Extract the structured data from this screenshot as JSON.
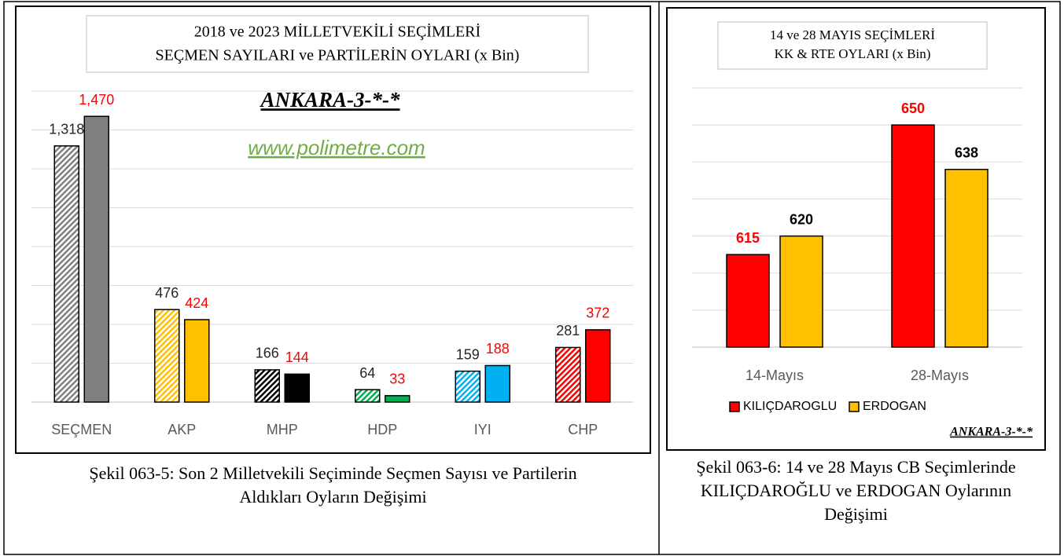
{
  "chart_data": [
    {
      "type": "bar",
      "title": [
        "2018 ve 2023 MİLLETVEKİLİ  SEÇİMLERİ",
        "SEÇMEN SAYILARI  ve PARTİLERİN  OYLARI  (x Bin)"
      ],
      "annotations": [
        "ANKARA-3-*-*",
        "www.polimetre.com"
      ],
      "caption": "Şekil 063-5: Son 2 Milletvekili Seçiminde Seçmen Sayısı ve Partilerin Aldıkları Oyların Değişimi",
      "categories": [
        "SEÇMEN",
        "AKP",
        "MHP",
        "HDP",
        "IYI",
        "CHP"
      ],
      "series": [
        {
          "values": [
            1318,
            476,
            166,
            64,
            159,
            281
          ],
          "value_labels": [
            "1,318",
            "476",
            "166",
            "64",
            "159",
            "281"
          ],
          "colors": [
            "#808080",
            "#ffc000",
            "#000000",
            "#00b050",
            "#00b0f0",
            "#ff0000"
          ],
          "hatch": true,
          "label_color": "#262626"
        },
        {
          "values": [
            1470,
            424,
            144,
            33,
            188,
            372
          ],
          "value_labels": [
            "1,470",
            "424",
            "144",
            "33",
            "188",
            "372"
          ],
          "colors": [
            "#808080",
            "#ffc000",
            "#000000",
            "#00b050",
            "#00b0f0",
            "#ff0000"
          ],
          "hatch": false,
          "label_color": "#ff0000"
        }
      ],
      "ylim": [
        0,
        1600
      ],
      "yticks": [
        0,
        200,
        400,
        600,
        800,
        1000,
        1200,
        1400,
        1600
      ],
      "grid": true,
      "legend": false
    },
    {
      "type": "bar",
      "title": [
        "14 ve 28 MAYIS SEÇİMLERİ",
        "KK & RTE OYLARI (x Bin)"
      ],
      "annotations": [
        "ANKARA-3-*-*"
      ],
      "caption": "Şekil 063-6: 14 ve 28 Mayıs CB Seçimlerinde KILIÇDAROĞLU ve ERDOGAN Oylarının Değişimi",
      "categories": [
        "14-Mayıs",
        "28-Mayıs"
      ],
      "series": [
        {
          "name": "KILIÇDAROGLU",
          "color": "#ff0000",
          "values": [
            615,
            650
          ],
          "label_color": "#ff0000"
        },
        {
          "name": "ERDOGAN",
          "color": "#ffc000",
          "values": [
            620,
            638
          ],
          "label_color": "#000000"
        }
      ],
      "ylim": [
        590,
        660
      ],
      "yticks": [
        590,
        600,
        610,
        620,
        630,
        640,
        650,
        660
      ],
      "grid": true,
      "legend": "bottom"
    }
  ]
}
